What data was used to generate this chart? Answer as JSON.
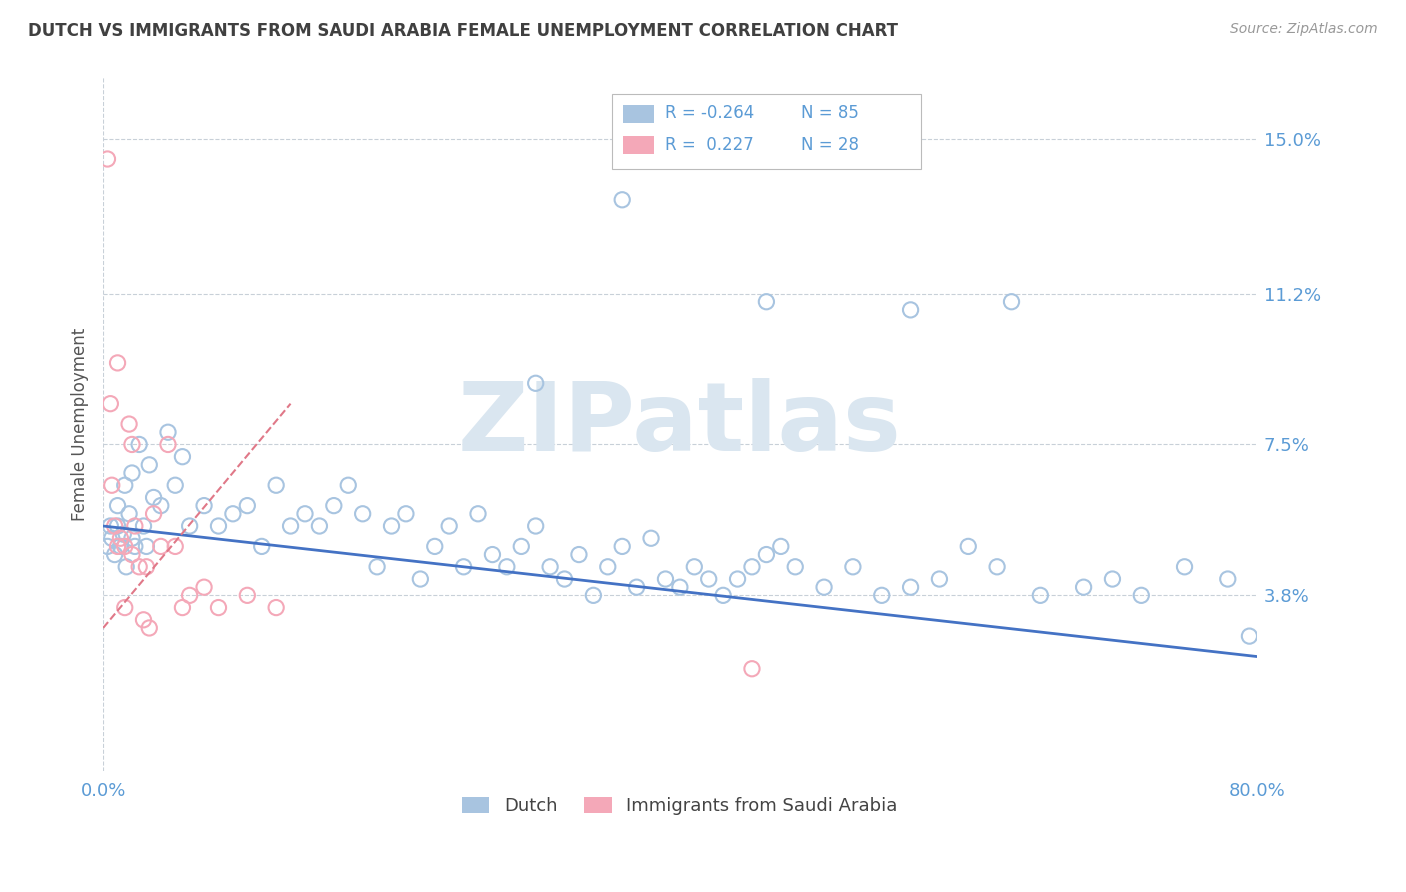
{
  "title": "DUTCH VS IMMIGRANTS FROM SAUDI ARABIA FEMALE UNEMPLOYMENT CORRELATION CHART",
  "source": "Source: ZipAtlas.com",
  "xlabel": "",
  "ylabel": "Female Unemployment",
  "xlim": [
    0.0,
    80.0
  ],
  "ylim": [
    -0.5,
    16.5
  ],
  "yticks": [
    3.8,
    7.5,
    11.2,
    15.0
  ],
  "xticks": [
    0.0,
    80.0
  ],
  "background_color": "#ffffff",
  "grid_color": "#c8d0d8",
  "title_color": "#404040",
  "axis_color": "#5b9bd5",
  "watermark": "ZIPatlas",
  "watermark_color": "#dae6f0",
  "dutch_color": "#a8c4e0",
  "saudi_color": "#f4a8b8",
  "trend_dutch_color": "#4472c4",
  "trend_saudi_color": "#e07888",
  "legend_R_dutch": "-0.264",
  "legend_N_dutch": "85",
  "legend_R_saudi": "0.227",
  "legend_N_saudi": "28",
  "legend_label_dutch": "Dutch",
  "legend_label_saudi": "Immigrants from Saudi Arabia",
  "dutch_x": [
    0.3,
    0.5,
    0.6,
    0.8,
    1.0,
    1.0,
    1.2,
    1.4,
    1.5,
    1.6,
    1.8,
    2.0,
    2.0,
    2.2,
    2.5,
    2.8,
    3.0,
    3.2,
    3.5,
    4.0,
    4.5,
    5.0,
    5.5,
    6.0,
    7.0,
    8.0,
    9.0,
    10.0,
    11.0,
    12.0,
    13.0,
    14.0,
    15.0,
    16.0,
    17.0,
    18.0,
    19.0,
    20.0,
    21.0,
    22.0,
    23.0,
    24.0,
    25.0,
    26.0,
    27.0,
    28.0,
    29.0,
    30.0,
    31.0,
    32.0,
    33.0,
    34.0,
    35.0,
    36.0,
    37.0,
    38.0,
    39.0,
    40.0,
    41.0,
    42.0,
    43.0,
    44.0,
    45.0,
    46.0,
    47.0,
    48.0,
    50.0,
    52.0,
    54.0,
    56.0,
    58.0,
    60.0,
    62.0,
    65.0,
    68.0,
    70.0,
    72.0,
    75.0,
    78.0,
    79.5,
    36.0,
    46.0,
    56.0,
    63.0,
    30.0
  ],
  "dutch_y": [
    5.0,
    5.5,
    5.2,
    4.8,
    5.5,
    6.0,
    5.0,
    5.3,
    6.5,
    4.5,
    5.8,
    5.2,
    6.8,
    5.0,
    7.5,
    5.5,
    5.0,
    7.0,
    6.2,
    6.0,
    7.8,
    6.5,
    7.2,
    5.5,
    6.0,
    5.5,
    5.8,
    6.0,
    5.0,
    6.5,
    5.5,
    5.8,
    5.5,
    6.0,
    6.5,
    5.8,
    4.5,
    5.5,
    5.8,
    4.2,
    5.0,
    5.5,
    4.5,
    5.8,
    4.8,
    4.5,
    5.0,
    5.5,
    4.5,
    4.2,
    4.8,
    3.8,
    4.5,
    5.0,
    4.0,
    5.2,
    4.2,
    4.0,
    4.5,
    4.2,
    3.8,
    4.2,
    4.5,
    4.8,
    5.0,
    4.5,
    4.0,
    4.5,
    3.8,
    4.0,
    4.2,
    5.0,
    4.5,
    3.8,
    4.0,
    4.2,
    3.8,
    4.5,
    4.2,
    2.8,
    13.5,
    11.0,
    10.8,
    11.0,
    9.0
  ],
  "saudi_x": [
    0.3,
    0.5,
    0.6,
    0.8,
    1.0,
    1.0,
    1.2,
    1.5,
    1.8,
    2.0,
    2.0,
    2.2,
    2.5,
    3.0,
    3.5,
    4.0,
    4.5,
    5.0,
    5.5,
    6.0,
    7.0,
    8.0,
    10.0,
    12.0,
    1.5,
    2.8,
    3.2,
    45.0
  ],
  "saudi_y": [
    14.5,
    8.5,
    6.5,
    5.5,
    5.0,
    9.5,
    5.2,
    5.0,
    8.0,
    4.8,
    7.5,
    5.5,
    4.5,
    4.5,
    5.8,
    5.0,
    7.5,
    5.0,
    3.5,
    3.8,
    4.0,
    3.5,
    3.8,
    3.5,
    3.5,
    3.2,
    3.0,
    2.0
  ]
}
